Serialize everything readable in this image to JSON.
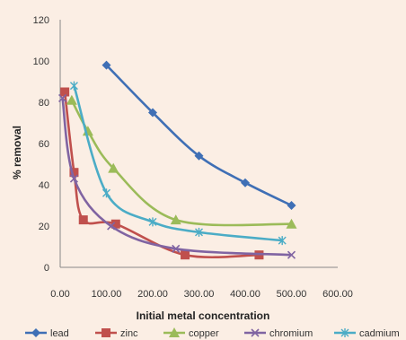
{
  "chart_data": {
    "type": "line",
    "xlabel": "Initial metal concentration",
    "ylabel": "% removal",
    "xlim": [
      0,
      600
    ],
    "ylim": [
      0,
      120
    ],
    "xticks": [
      "0.00",
      "100.00",
      "200.00",
      "300.00",
      "400.00",
      "500.00",
      "600.00"
    ],
    "yticks": [
      "0",
      "20",
      "40",
      "60",
      "80",
      "100",
      "120"
    ],
    "grid": false,
    "legend_position": "bottom",
    "series": [
      {
        "name": "lead",
        "color": "#3f6fb5",
        "marker": "diamond",
        "x": [
          100,
          200,
          300,
          400,
          500
        ],
        "y": [
          98,
          75,
          54,
          41,
          30
        ]
      },
      {
        "name": "zinc",
        "color": "#c0504d",
        "marker": "square",
        "x": [
          10,
          30,
          50,
          120,
          270,
          430
        ],
        "y": [
          85,
          46,
          23,
          21,
          6,
          6
        ]
      },
      {
        "name": "copper",
        "color": "#9bbb59",
        "marker": "triangle",
        "x": [
          25,
          60,
          115,
          250,
          500
        ],
        "y": [
          81,
          66,
          48,
          23,
          21
        ]
      },
      {
        "name": "chromium",
        "color": "#8064a2",
        "marker": "x",
        "x": [
          5,
          30,
          110,
          250,
          500
        ],
        "y": [
          82,
          43,
          20,
          9,
          6
        ]
      },
      {
        "name": "cadmium",
        "color": "#4bacc6",
        "marker": "star",
        "x": [
          30,
          100,
          200,
          300,
          480
        ],
        "y": [
          88,
          36,
          22,
          17,
          13
        ]
      }
    ]
  }
}
